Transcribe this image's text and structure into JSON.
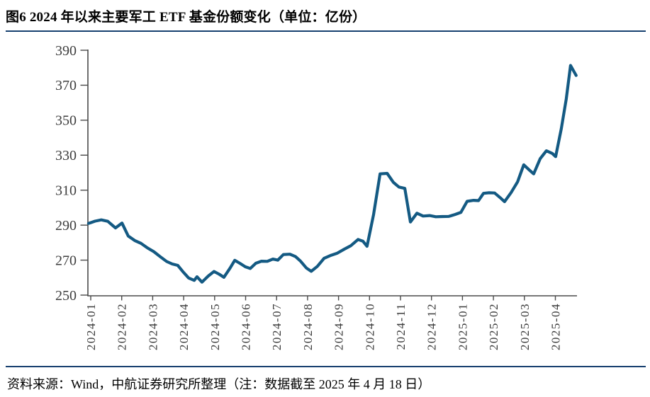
{
  "header": {
    "title": "图6  2024 年以来主要军工 ETF 基金份额变化（单位：亿份）"
  },
  "footer": {
    "source_note": "资料来源：Wind，中航证券研究所整理（注：数据截至 2025 年 4 月 18 日）"
  },
  "colors": {
    "line": "#145A83",
    "rule": "#17406F",
    "axis": "#4A4A4A",
    "tick_label": "#3D3D3D"
  },
  "chart_data": {
    "type": "line",
    "title": "2024 年以来主要军工 ETF 基金份额变化",
    "unit": "亿份",
    "grid": false,
    "legend_position": "none",
    "ylim": [
      250,
      390
    ],
    "yticks": [
      250,
      270,
      290,
      310,
      330,
      350,
      370,
      390
    ],
    "x_tick_labels": [
      "2024-01",
      "2024-02",
      "2024-03",
      "2024-04",
      "2024-05",
      "2024-06",
      "2024-07",
      "2024-08",
      "2024-09",
      "2024-10",
      "2024-11",
      "2024-12",
      "2025-01",
      "2025-02",
      "2025-03",
      "2025-04"
    ],
    "series": [
      {
        "name": "主要军工ETF基金份额",
        "x_unit": "months_since_2024-01",
        "points": [
          [
            -0.07,
            291
          ],
          [
            0.14,
            292.3
          ],
          [
            0.34,
            293
          ],
          [
            0.55,
            292.2
          ],
          [
            0.8,
            288.4
          ],
          [
            1.01,
            291.2
          ],
          [
            1.21,
            283.8
          ],
          [
            1.42,
            281.2
          ],
          [
            1.62,
            279.6
          ],
          [
            1.83,
            277
          ],
          [
            2.04,
            274.8
          ],
          [
            2.24,
            272
          ],
          [
            2.45,
            269.2
          ],
          [
            2.63,
            267.8
          ],
          [
            2.81,
            267
          ],
          [
            2.97,
            263.5
          ],
          [
            3.16,
            259.8
          ],
          [
            3.34,
            258.4
          ],
          [
            3.43,
            260.5
          ],
          [
            3.59,
            257.4
          ],
          [
            3.8,
            261
          ],
          [
            3.98,
            263.5
          ],
          [
            4.14,
            262
          ],
          [
            4.3,
            260.2
          ],
          [
            4.49,
            265.2
          ],
          [
            4.65,
            269.9
          ],
          [
            4.83,
            268
          ],
          [
            4.99,
            266.2
          ],
          [
            5.15,
            265.2
          ],
          [
            5.33,
            268.2
          ],
          [
            5.51,
            269.4
          ],
          [
            5.7,
            269.3
          ],
          [
            5.88,
            270.6
          ],
          [
            6.04,
            270
          ],
          [
            6.22,
            273.2
          ],
          [
            6.43,
            273.4
          ],
          [
            6.61,
            272
          ],
          [
            6.77,
            269.5
          ],
          [
            6.96,
            265.5
          ],
          [
            7.12,
            263.6
          ],
          [
            7.32,
            266.5
          ],
          [
            7.53,
            271
          ],
          [
            7.76,
            272.8
          ],
          [
            7.96,
            274
          ],
          [
            8.19,
            276.3
          ],
          [
            8.4,
            278.3
          ],
          [
            8.63,
            281.8
          ],
          [
            8.79,
            280.8
          ],
          [
            8.92,
            277.9
          ],
          [
            9.13,
            296
          ],
          [
            9.34,
            319.3
          ],
          [
            9.57,
            319.6
          ],
          [
            9.77,
            314.5
          ],
          [
            9.95,
            311.8
          ],
          [
            10.14,
            311
          ],
          [
            10.32,
            291.8
          ],
          [
            10.53,
            296.8
          ],
          [
            10.73,
            295.2
          ],
          [
            10.94,
            295.5
          ],
          [
            11.14,
            294.8
          ],
          [
            11.35,
            294.9
          ],
          [
            11.56,
            295
          ],
          [
            11.76,
            296.1
          ],
          [
            11.95,
            297.3
          ],
          [
            12.15,
            303.6
          ],
          [
            12.36,
            304.2
          ],
          [
            12.52,
            304
          ],
          [
            12.68,
            308.2
          ],
          [
            12.86,
            308.5
          ],
          [
            13.04,
            308.4
          ],
          [
            13.23,
            305.5
          ],
          [
            13.36,
            303.4
          ],
          [
            13.57,
            308.6
          ],
          [
            13.78,
            314.8
          ],
          [
            13.98,
            324.5
          ],
          [
            14.16,
            321.5
          ],
          [
            14.3,
            319.3
          ],
          [
            14.51,
            328
          ],
          [
            14.71,
            332.5
          ],
          [
            14.9,
            331
          ],
          [
            15.01,
            329.2
          ],
          [
            15.19,
            345
          ],
          [
            15.35,
            362
          ],
          [
            15.49,
            381.3
          ],
          [
            15.67,
            375.6
          ]
        ]
      }
    ]
  }
}
